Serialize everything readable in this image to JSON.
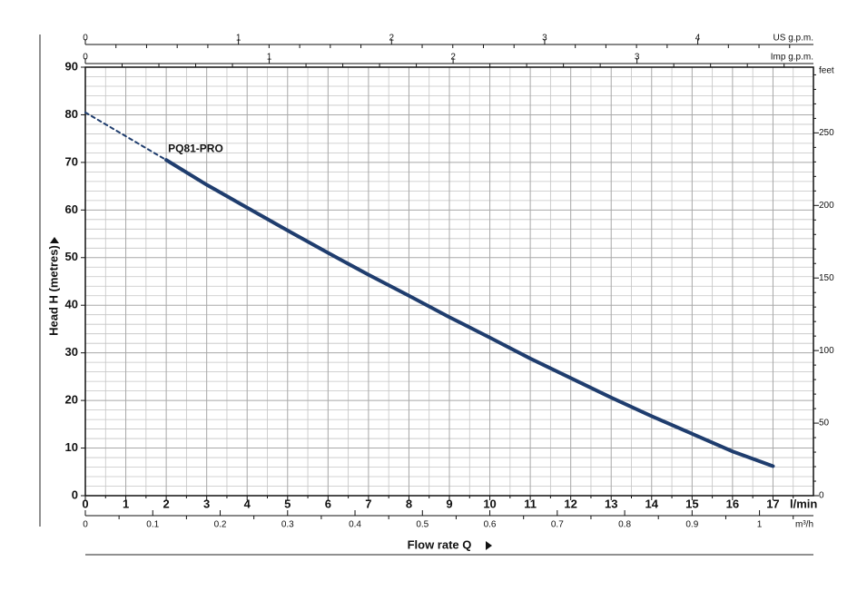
{
  "chart_data": {
    "type": "line",
    "x_label": "Flow rate Q",
    "y_label": "Head H (metres)",
    "x_unit": "l/min",
    "xlim": [
      0,
      18
    ],
    "xticks": [
      0,
      1,
      2,
      3,
      4,
      5,
      6,
      7,
      8,
      9,
      10,
      11,
      12,
      13,
      14,
      15,
      16,
      17
    ],
    "xgrid": [
      0.5,
      1.5,
      2.5,
      3.5,
      4.5,
      5.5,
      6.5,
      7.5,
      8.5,
      9.5,
      10.5,
      11.5,
      12.5,
      13.5,
      14.5,
      15.5,
      16.5,
      17.5
    ],
    "ylim": [
      0,
      90
    ],
    "yticks": [
      0,
      10,
      20,
      30,
      40,
      50,
      60,
      70,
      80,
      90
    ],
    "ygrid": [
      2,
      4,
      6,
      8,
      12,
      14,
      16,
      18,
      22,
      24,
      26,
      28,
      32,
      34,
      36,
      38,
      42,
      44,
      46,
      48,
      52,
      54,
      56,
      58,
      62,
      64,
      66,
      68,
      72,
      74,
      76,
      78,
      82,
      84,
      86,
      88
    ],
    "grid": true,
    "series": [
      {
        "name": "PQ81-PRO",
        "color": "#1f3d6e",
        "line_style": "solid",
        "x": [
          2,
          3,
          4,
          5,
          6,
          7,
          8,
          9,
          10,
          11,
          12,
          13,
          14,
          15,
          16,
          17
        ],
        "values": [
          70.5,
          65.3,
          60.5,
          55.7,
          51,
          46.4,
          42,
          37.5,
          33.2,
          28.8,
          24.7,
          20.6,
          16.7,
          13,
          9.3,
          6.2
        ]
      },
      {
        "color": "#1f3d6e",
        "line_style": "dashed",
        "x": [
          0,
          1,
          2
        ],
        "values": [
          80.5,
          75.5,
          70.5
        ]
      }
    ],
    "secondary_axes": [
      {
        "label": "US g.p.m.",
        "position": "top",
        "lim": [
          0,
          4.7555
        ],
        "ticks": [
          0,
          1,
          2,
          3,
          4
        ],
        "minor_ticks": [
          0.2,
          0.4,
          0.6,
          0.8,
          1.2,
          1.4,
          1.6,
          1.8,
          2.2,
          2.4,
          2.6,
          2.8,
          3.2,
          3.4,
          3.6,
          3.8,
          4.2,
          4.4,
          4.6
        ]
      },
      {
        "label": "Imp g.p.m.",
        "position": "top",
        "lim": [
          0,
          3.9595
        ],
        "ticks": [
          0,
          1,
          2,
          3
        ],
        "minor_ticks": [
          0.2,
          0.4,
          0.6,
          0.8,
          1.2,
          1.4,
          1.6,
          1.8,
          2.2,
          2.4,
          2.6,
          2.8,
          3.2,
          3.4,
          3.6,
          3.8
        ]
      },
      {
        "label": "feet",
        "position": "right",
        "lim": [
          0,
          295.28
        ],
        "ticks": [
          0,
          50,
          100,
          150,
          200,
          250
        ],
        "minor_ticks": [
          10,
          20,
          30,
          40,
          60,
          70,
          80,
          90,
          110,
          120,
          130,
          140,
          160,
          170,
          180,
          190,
          210,
          220,
          230,
          240,
          260,
          270,
          280,
          290
        ]
      },
      {
        "label": "m³/h",
        "position": "bottom",
        "lim": [
          0,
          1.08
        ],
        "ticks": [
          0,
          0.1,
          0.2,
          0.3,
          0.4,
          0.5,
          0.6,
          0.7,
          0.8,
          0.9,
          1
        ],
        "minor_ticks": [
          0.05,
          0.15,
          0.25,
          0.35,
          0.45,
          0.55,
          0.65,
          0.75,
          0.85,
          0.95,
          1.05
        ]
      }
    ]
  }
}
